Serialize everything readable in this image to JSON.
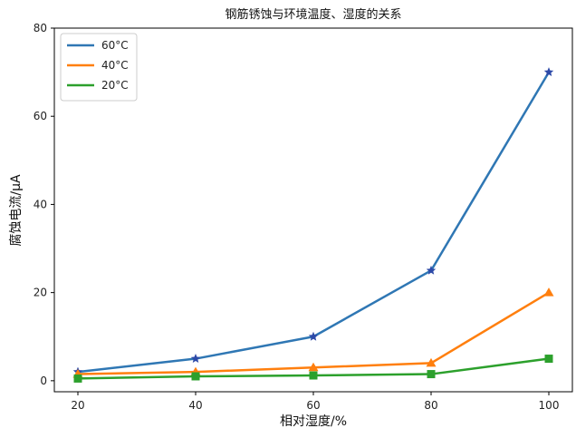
{
  "chart_data": {
    "type": "line",
    "title": "钢筋锈蚀与环境温度、湿度的关系",
    "xlabel": "相对湿度/%",
    "ylabel": "腐蚀电流/μA",
    "x": [
      20,
      40,
      60,
      80,
      100
    ],
    "xticks": [
      "20",
      "40",
      "60",
      "80",
      "100"
    ],
    "yticks": [
      "0",
      "20",
      "40",
      "60",
      "80"
    ],
    "xlim": [
      16,
      104
    ],
    "ylim": [
      -2.5,
      80
    ],
    "grid": false,
    "legend_position": "top-left",
    "series": [
      {
        "name": "60°C",
        "values": [
          2,
          5,
          10,
          25,
          70
        ],
        "color": "#2f77b4",
        "marker_color": "#2d4aa8",
        "marker": "star"
      },
      {
        "name": "40°C",
        "values": [
          1.5,
          2,
          3,
          4,
          20
        ],
        "color": "#ff7f0e",
        "marker_color": "#ff7f0e",
        "marker": "triangle"
      },
      {
        "name": "20°C",
        "values": [
          0.5,
          1,
          1.2,
          1.5,
          5
        ],
        "color": "#2ca02c",
        "marker_color": "#2ca02c",
        "marker": "square"
      }
    ]
  }
}
